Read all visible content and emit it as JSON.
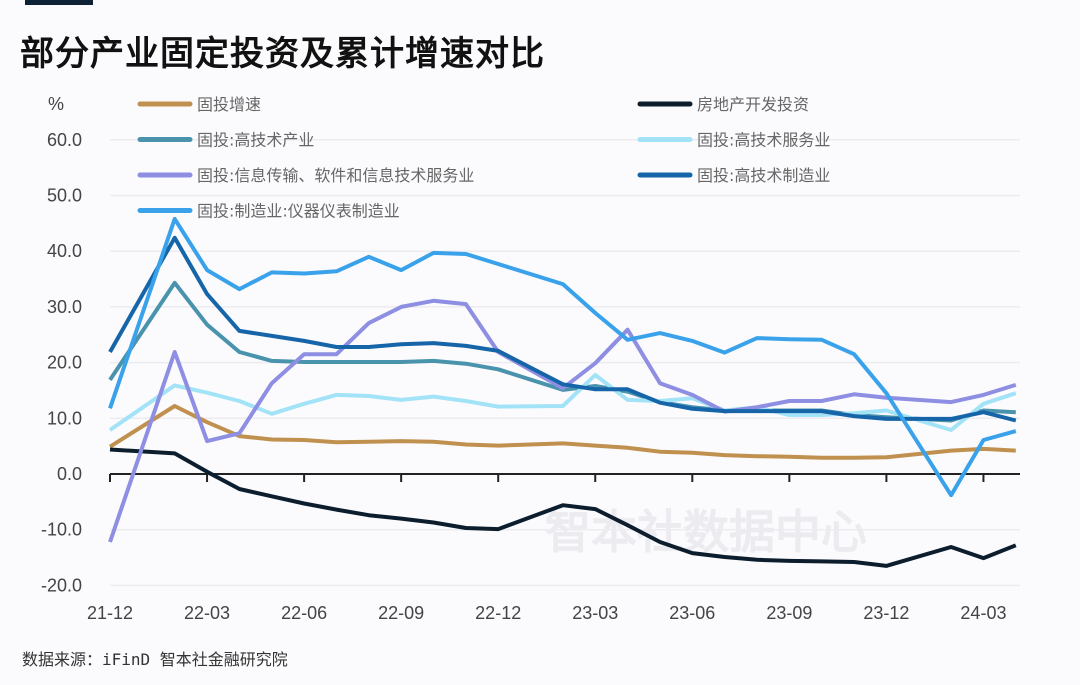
{
  "title": "部分产业固定投资及累计增速对比",
  "source": "数据来源：iFinD 智本社金融研究院",
  "watermark": "智本社数据中心",
  "chart_data": {
    "type": "line",
    "title": "部分产业固定投资及累计增速对比",
    "ylabel": "%",
    "ylim": [
      -20,
      60
    ],
    "yticks": [
      "60.0",
      "50.0",
      "40.0",
      "30.0",
      "20.0",
      "10.0",
      "0.0",
      "-10.0",
      "-20.0"
    ],
    "xtick_labels": [
      "21-12",
      "22-03",
      "22-06",
      "22-09",
      "22-12",
      "23-03",
      "23-06",
      "23-09",
      "23-12",
      "24-03"
    ],
    "grid": true,
    "legend_placement": "top",
    "x": [
      "21-12",
      "22-02",
      "22-03",
      "22-04",
      "22-05",
      "22-06",
      "22-07",
      "22-08",
      "22-09",
      "22-10",
      "22-11",
      "22-12",
      "23-02",
      "23-03",
      "23-04",
      "23-05",
      "23-06",
      "23-07",
      "23-08",
      "23-09",
      "23-10",
      "23-11",
      "23-12",
      "24-02",
      "24-03",
      "24-04"
    ],
    "series": [
      {
        "name": "固投增速",
        "color": "#c0904f",
        "values": [
          4.9,
          12.2,
          9.3,
          6.8,
          6.2,
          6.1,
          5.7,
          5.8,
          5.9,
          5.8,
          5.3,
          5.1,
          5.5,
          5.1,
          4.7,
          4.0,
          3.8,
          3.4,
          3.2,
          3.1,
          2.9,
          2.9,
          3.0,
          4.2,
          4.5,
          4.2
        ]
      },
      {
        "name": "房地产开发投资",
        "color": "#0c1d2e",
        "values": [
          4.4,
          3.7,
          0.4,
          -2.7,
          -4.0,
          -5.3,
          -6.4,
          -7.4,
          -8.0,
          -8.7,
          -9.7,
          -9.9,
          -5.6,
          -6.3,
          -9.2,
          -12.2,
          -14.2,
          -14.9,
          -15.4,
          -15.6,
          -15.7,
          -15.8,
          -16.5,
          -13.1,
          -15.1,
          -12.8
        ]
      },
      {
        "name": "固投:高技术产业",
        "color": "#4a93ad",
        "values": [
          16.9,
          34.3,
          26.8,
          21.9,
          20.3,
          20.1,
          20.1,
          20.1,
          20.1,
          20.3,
          19.8,
          18.8,
          15.1,
          15.8,
          14.8,
          12.9,
          12.0,
          11.4,
          11.4,
          11.4,
          11.4,
          10.6,
          10.2,
          9.6,
          11.4,
          11.1
        ]
      },
      {
        "name": "固投:高技术服务业",
        "color": "#a3e3f7",
        "values": [
          7.9,
          15.9,
          14.6,
          13.1,
          10.8,
          12.6,
          14.2,
          14.0,
          13.3,
          13.9,
          13.1,
          12.1,
          12.2,
          17.8,
          13.3,
          13.1,
          13.6,
          11.4,
          12.0,
          10.6,
          10.6,
          10.9,
          11.4,
          7.9,
          12.6,
          14.5
        ]
      },
      {
        "name": "固投:信息传输、软件和信息技术服务业",
        "color": "#8e8ee2",
        "values": [
          -12.2,
          21.9,
          5.9,
          7.3,
          16.3,
          21.5,
          21.5,
          27.1,
          30.0,
          31.1,
          30.5,
          21.9,
          15.4,
          19.9,
          25.9,
          16.3,
          14.2,
          11.2,
          12.0,
          13.1,
          13.1,
          14.3,
          13.7,
          12.9,
          14.2,
          16.0
        ]
      },
      {
        "name": "固投:高技术制造业",
        "color": "#1565a8",
        "values": [
          21.9,
          42.4,
          32.3,
          25.7,
          24.8,
          23.9,
          22.8,
          22.8,
          23.3,
          23.5,
          23.0,
          22.1,
          16.1,
          15.2,
          15.2,
          12.8,
          11.7,
          11.3,
          11.3,
          11.3,
          11.3,
          10.4,
          9.9,
          9.9,
          11.1,
          9.6
        ]
      },
      {
        "name": "固投:制造业:仪器仪表制造业",
        "color": "#3aa2ea",
        "values": [
          11.8,
          45.8,
          36.6,
          33.2,
          36.2,
          36.0,
          36.4,
          39.0,
          36.6,
          39.7,
          39.5,
          37.7,
          34.1,
          28.9,
          24.1,
          25.3,
          23.9,
          21.8,
          24.4,
          24.2,
          24.1,
          21.5,
          14.5,
          -3.8,
          6.1,
          7.7
        ]
      }
    ]
  }
}
